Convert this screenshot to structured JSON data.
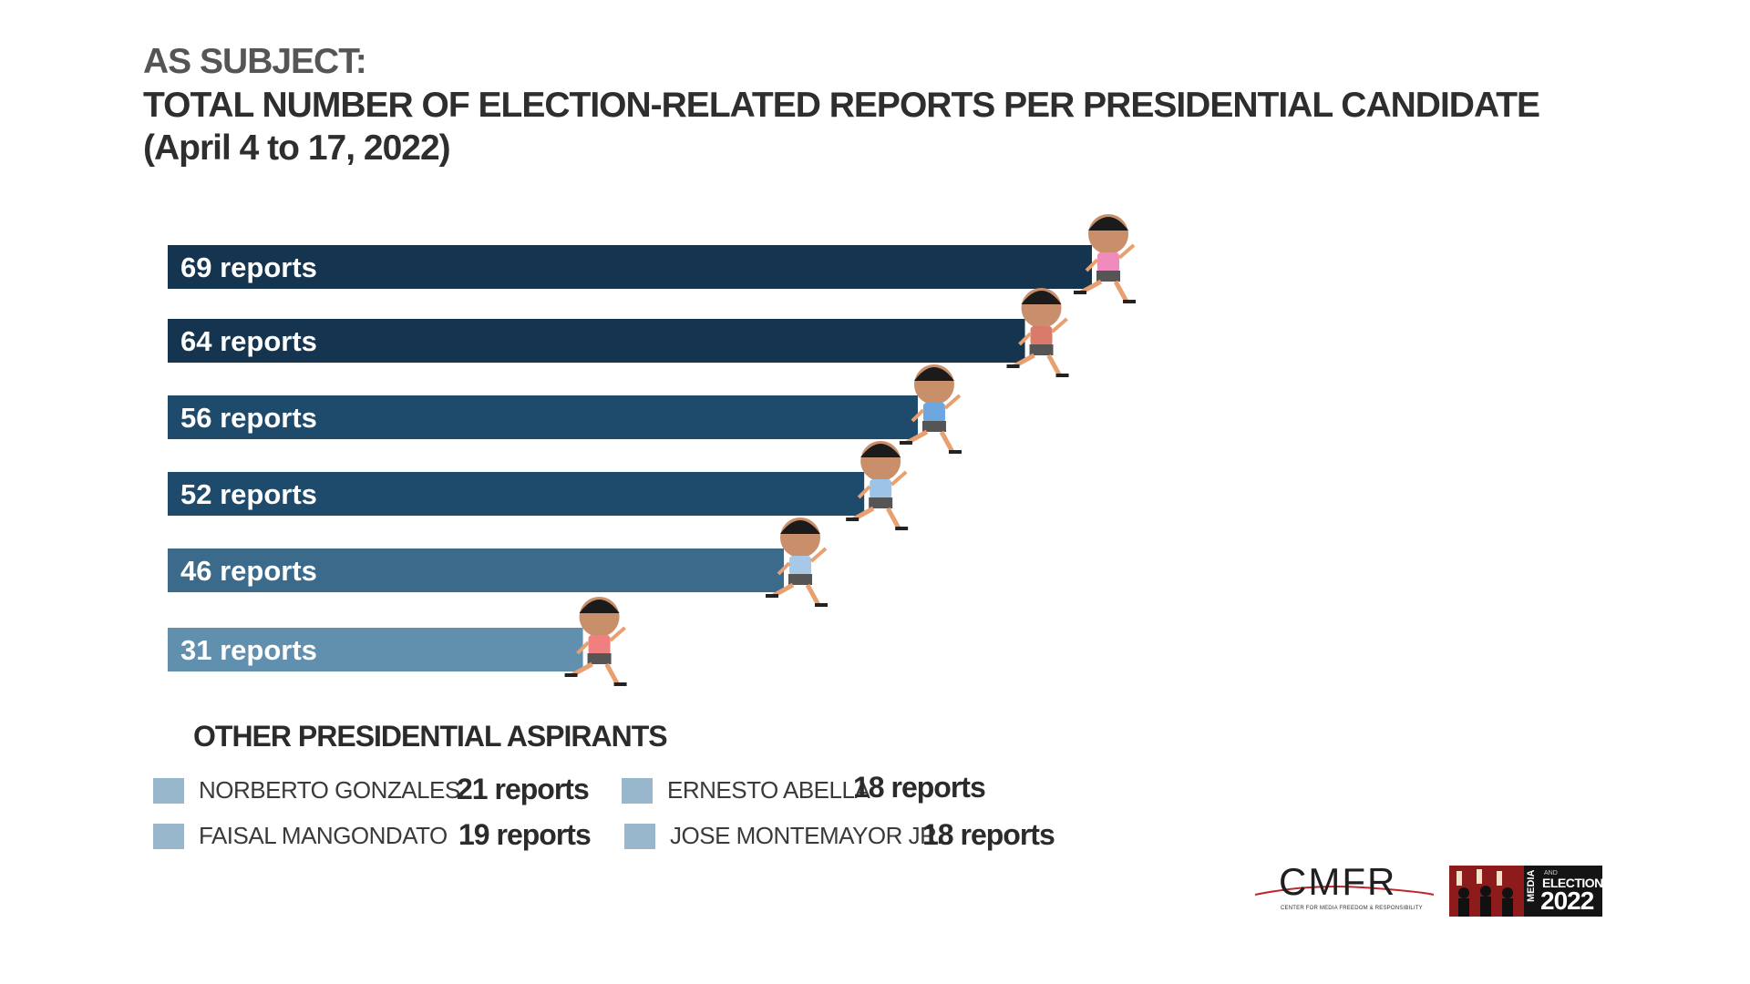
{
  "header": {
    "line1": "AS SUBJECT:",
    "line2": "TOTAL NUMBER OF ELECTION-RELATED REPORTS PER PRESIDENTIAL CANDIDATE",
    "line3": "(April 4 to 17, 2022)"
  },
  "chart_data": {
    "type": "bar",
    "orientation": "horizontal",
    "values": [
      69,
      64,
      56,
      52,
      46,
      31
    ],
    "labels": [
      "69 reports",
      "64 reports",
      "56 reports",
      "52 reports",
      "46 reports",
      "31 reports"
    ],
    "colors": [
      "#15344f",
      "#15344f",
      "#1e4a6c",
      "#1e4a6c",
      "#3c6a8b",
      "#6190ae"
    ],
    "xlim": [
      0,
      69
    ],
    "grid": false,
    "legend": "none",
    "marker_icons": [
      "running-candidate-icon",
      "running-candidate-icon",
      "running-candidate-icon",
      "running-candidate-icon",
      "running-candidate-icon",
      "running-candidate-icon"
    ]
  },
  "others": {
    "title": "OTHER PRESIDENTIAL ASPIRANTS",
    "swatch_color": "#98b6cc",
    "items": [
      {
        "name": "NORBERTO GONZALES",
        "count": "21 reports"
      },
      {
        "name": "ERNESTO ABELLA",
        "count": "18 reports"
      },
      {
        "name": "FAISAL MANGONDATO",
        "count": "19 reports"
      },
      {
        "name": "JOSE MONTEMAYOR JR.",
        "count": "18 reports"
      }
    ]
  },
  "logos": {
    "cmfr": {
      "text": "CMFR",
      "subtitle": "CENTER FOR MEDIA FREEDOM & RESPONSIBILITY"
    },
    "media_elections": {
      "media": "MEDIA",
      "and": "AND",
      "elections": "ELECTIONS",
      "year": "2022"
    }
  }
}
